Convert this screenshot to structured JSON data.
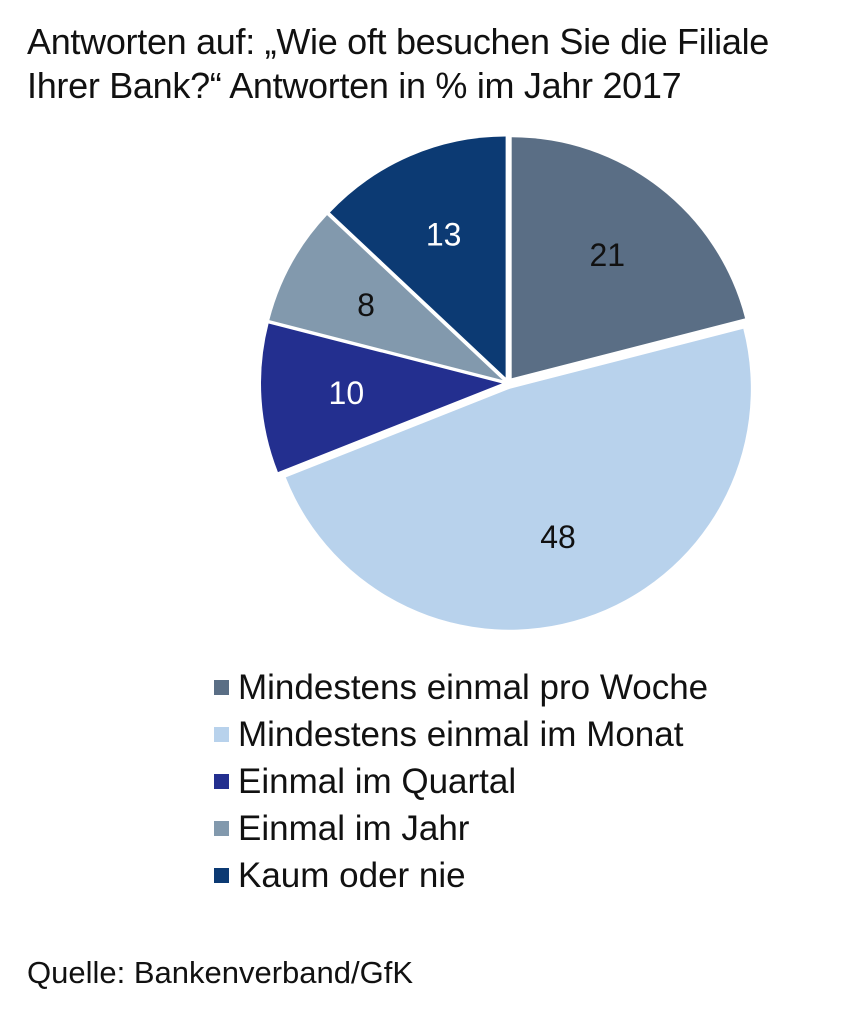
{
  "title_lines": [
    "Antworten auf: „Wie oft besuchen Sie die Filiale",
    "Ihrer Bank?“ Antworten in % im Jahr 2017"
  ],
  "source": "Quelle: Bankenverband/GfK",
  "chart_data": {
    "type": "pie",
    "unit": "%",
    "categories": [
      "Mindestens einmal pro Woche",
      "Mindestens einmal im Monat",
      "Einmal im Quartal",
      "Einmal im Jahr",
      "Kaum oder nie"
    ],
    "values": [
      21,
      48,
      10,
      8,
      13
    ],
    "colors": [
      "#5a6e85",
      "#b8d2ec",
      "#232f8f",
      "#8299ad",
      "#0c3a73"
    ],
    "label_colors": [
      "#111111",
      "#111111",
      "#ffffff",
      "#111111",
      "#ffffff"
    ],
    "start_angle_deg": 0,
    "direction": "clockwise",
    "legend_position": "bottom"
  }
}
